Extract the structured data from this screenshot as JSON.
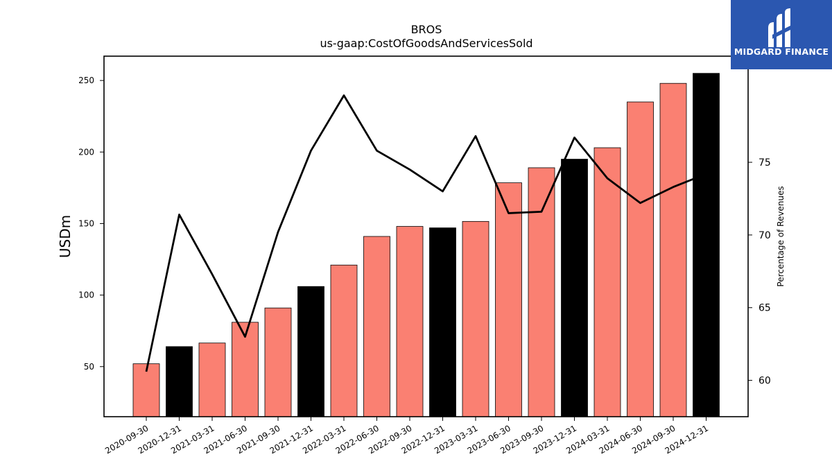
{
  "logo": {
    "text": "MIDGARD FINANCE",
    "icon": "midgard-logo-icon",
    "bg_color": "#2b57b0"
  },
  "chart_data": {
    "type": "bar",
    "title": "BROS",
    "subtitle": "us-gaap:CostOfGoodsAndServicesSold",
    "ylabel": "USDm",
    "y2label": "Percentage of Revenues",
    "ylim": [
      15,
      267
    ],
    "y2lim": [
      57.5,
      82.3
    ],
    "yticks": [
      50,
      100,
      150,
      200,
      250
    ],
    "y2ticks": [
      60,
      65,
      70,
      75
    ],
    "categories": [
      "2020-09-30",
      "2020-12-31",
      "2021-03-31",
      "2021-06-30",
      "2021-09-30",
      "2021-12-31",
      "2022-03-31",
      "2022-06-30",
      "2022-09-30",
      "2022-12-31",
      "2023-03-31",
      "2023-06-30",
      "2023-09-30",
      "2023-12-31",
      "2024-03-31",
      "2024-06-30",
      "2024-09-30",
      "2024-12-31"
    ],
    "series": [
      {
        "type": "bar",
        "values": [
          52,
          64,
          66.5,
          81,
          91,
          106,
          121,
          141,
          148,
          147,
          151.5,
          178.5,
          189,
          195,
          203,
          235,
          248,
          255
        ],
        "colors": [
          "#fa8072",
          "#000000",
          "#fa8072",
          "#fa8072",
          "#fa8072",
          "#000000",
          "#fa8072",
          "#fa8072",
          "#fa8072",
          "#000000",
          "#fa8072",
          "#fa8072",
          "#fa8072",
          "#000000",
          "#fa8072",
          "#fa8072",
          "#fa8072",
          "#000000"
        ]
      },
      {
        "type": "line",
        "axis": "right",
        "color": "#000000",
        "values": [
          60.6,
          71.4,
          67.3,
          63.0,
          70.2,
          75.8,
          79.6,
          75.8,
          74.5,
          73.0,
          76.8,
          71.5,
          71.6,
          76.7,
          73.9,
          72.2,
          73.3,
          74.2
        ]
      }
    ],
    "grid": false,
    "legend": "none"
  }
}
